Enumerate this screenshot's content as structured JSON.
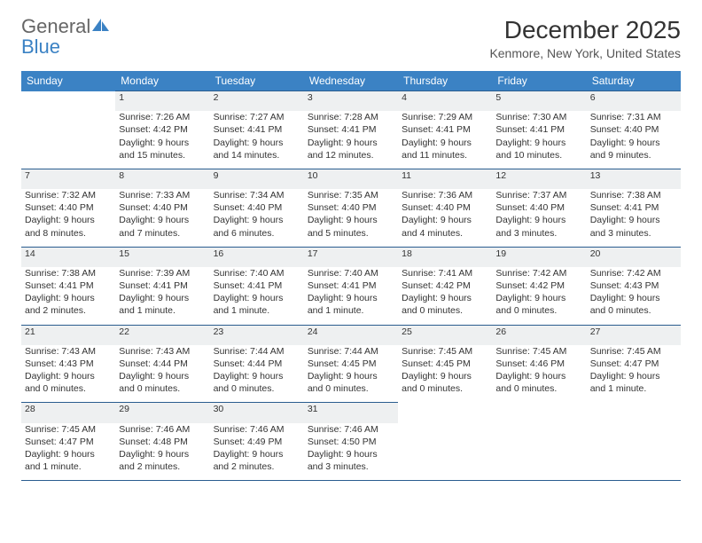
{
  "logo": {
    "word1": "General",
    "word2": "Blue"
  },
  "title": "December 2025",
  "subtitle": "Kenmore, New York, United States",
  "colors": {
    "header_bg": "#3b82c4",
    "header_text": "#ffffff",
    "daynum_bg": "#eef0f1",
    "rule": "#2a5d8f",
    "text": "#333333",
    "subtext": "#555555"
  },
  "day_headers": [
    "Sunday",
    "Monday",
    "Tuesday",
    "Wednesday",
    "Thursday",
    "Friday",
    "Saturday"
  ],
  "weeks": [
    {
      "nums": [
        "",
        "1",
        "2",
        "3",
        "4",
        "5",
        "6"
      ],
      "cells": [
        [],
        [
          "Sunrise: 7:26 AM",
          "Sunset: 4:42 PM",
          "Daylight: 9 hours",
          "and 15 minutes."
        ],
        [
          "Sunrise: 7:27 AM",
          "Sunset: 4:41 PM",
          "Daylight: 9 hours",
          "and 14 minutes."
        ],
        [
          "Sunrise: 7:28 AM",
          "Sunset: 4:41 PM",
          "Daylight: 9 hours",
          "and 12 minutes."
        ],
        [
          "Sunrise: 7:29 AM",
          "Sunset: 4:41 PM",
          "Daylight: 9 hours",
          "and 11 minutes."
        ],
        [
          "Sunrise: 7:30 AM",
          "Sunset: 4:41 PM",
          "Daylight: 9 hours",
          "and 10 minutes."
        ],
        [
          "Sunrise: 7:31 AM",
          "Sunset: 4:40 PM",
          "Daylight: 9 hours",
          "and 9 minutes."
        ]
      ]
    },
    {
      "nums": [
        "7",
        "8",
        "9",
        "10",
        "11",
        "12",
        "13"
      ],
      "cells": [
        [
          "Sunrise: 7:32 AM",
          "Sunset: 4:40 PM",
          "Daylight: 9 hours",
          "and 8 minutes."
        ],
        [
          "Sunrise: 7:33 AM",
          "Sunset: 4:40 PM",
          "Daylight: 9 hours",
          "and 7 minutes."
        ],
        [
          "Sunrise: 7:34 AM",
          "Sunset: 4:40 PM",
          "Daylight: 9 hours",
          "and 6 minutes."
        ],
        [
          "Sunrise: 7:35 AM",
          "Sunset: 4:40 PM",
          "Daylight: 9 hours",
          "and 5 minutes."
        ],
        [
          "Sunrise: 7:36 AM",
          "Sunset: 4:40 PM",
          "Daylight: 9 hours",
          "and 4 minutes."
        ],
        [
          "Sunrise: 7:37 AM",
          "Sunset: 4:40 PM",
          "Daylight: 9 hours",
          "and 3 minutes."
        ],
        [
          "Sunrise: 7:38 AM",
          "Sunset: 4:41 PM",
          "Daylight: 9 hours",
          "and 3 minutes."
        ]
      ]
    },
    {
      "nums": [
        "14",
        "15",
        "16",
        "17",
        "18",
        "19",
        "20"
      ],
      "cells": [
        [
          "Sunrise: 7:38 AM",
          "Sunset: 4:41 PM",
          "Daylight: 9 hours",
          "and 2 minutes."
        ],
        [
          "Sunrise: 7:39 AM",
          "Sunset: 4:41 PM",
          "Daylight: 9 hours",
          "and 1 minute."
        ],
        [
          "Sunrise: 7:40 AM",
          "Sunset: 4:41 PM",
          "Daylight: 9 hours",
          "and 1 minute."
        ],
        [
          "Sunrise: 7:40 AM",
          "Sunset: 4:41 PM",
          "Daylight: 9 hours",
          "and 1 minute."
        ],
        [
          "Sunrise: 7:41 AM",
          "Sunset: 4:42 PM",
          "Daylight: 9 hours",
          "and 0 minutes."
        ],
        [
          "Sunrise: 7:42 AM",
          "Sunset: 4:42 PM",
          "Daylight: 9 hours",
          "and 0 minutes."
        ],
        [
          "Sunrise: 7:42 AM",
          "Sunset: 4:43 PM",
          "Daylight: 9 hours",
          "and 0 minutes."
        ]
      ]
    },
    {
      "nums": [
        "21",
        "22",
        "23",
        "24",
        "25",
        "26",
        "27"
      ],
      "cells": [
        [
          "Sunrise: 7:43 AM",
          "Sunset: 4:43 PM",
          "Daylight: 9 hours",
          "and 0 minutes."
        ],
        [
          "Sunrise: 7:43 AM",
          "Sunset: 4:44 PM",
          "Daylight: 9 hours",
          "and 0 minutes."
        ],
        [
          "Sunrise: 7:44 AM",
          "Sunset: 4:44 PM",
          "Daylight: 9 hours",
          "and 0 minutes."
        ],
        [
          "Sunrise: 7:44 AM",
          "Sunset: 4:45 PM",
          "Daylight: 9 hours",
          "and 0 minutes."
        ],
        [
          "Sunrise: 7:45 AM",
          "Sunset: 4:45 PM",
          "Daylight: 9 hours",
          "and 0 minutes."
        ],
        [
          "Sunrise: 7:45 AM",
          "Sunset: 4:46 PM",
          "Daylight: 9 hours",
          "and 0 minutes."
        ],
        [
          "Sunrise: 7:45 AM",
          "Sunset: 4:47 PM",
          "Daylight: 9 hours",
          "and 1 minute."
        ]
      ]
    },
    {
      "nums": [
        "28",
        "29",
        "30",
        "31",
        "",
        "",
        ""
      ],
      "cells": [
        [
          "Sunrise: 7:45 AM",
          "Sunset: 4:47 PM",
          "Daylight: 9 hours",
          "and 1 minute."
        ],
        [
          "Sunrise: 7:46 AM",
          "Sunset: 4:48 PM",
          "Daylight: 9 hours",
          "and 2 minutes."
        ],
        [
          "Sunrise: 7:46 AM",
          "Sunset: 4:49 PM",
          "Daylight: 9 hours",
          "and 2 minutes."
        ],
        [
          "Sunrise: 7:46 AM",
          "Sunset: 4:50 PM",
          "Daylight: 9 hours",
          "and 3 minutes."
        ],
        [],
        [],
        []
      ]
    }
  ]
}
